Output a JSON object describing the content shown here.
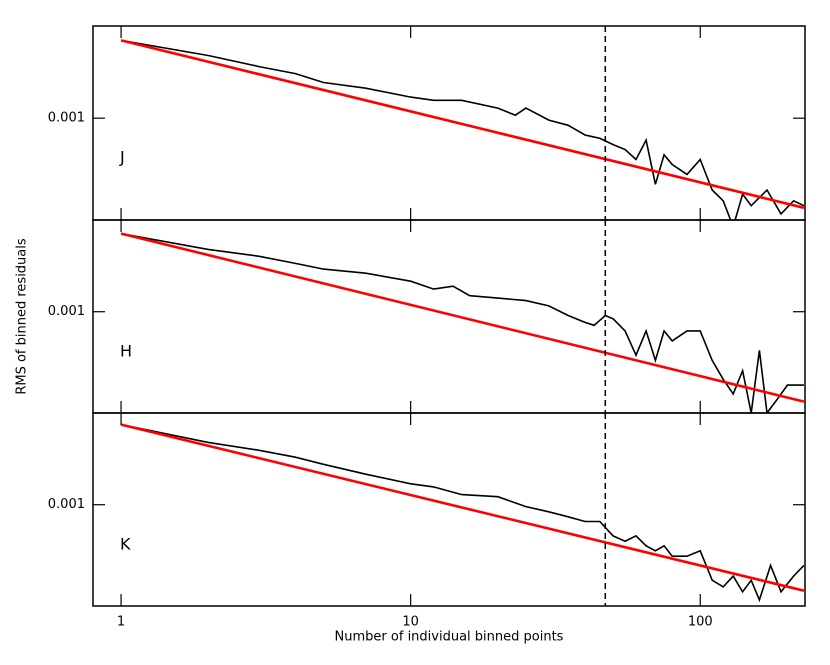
{
  "chart_data": [
    {
      "type": "line",
      "label": "J",
      "xscale": "log",
      "yscale": "log",
      "xlim": [
        0.8,
        230
      ],
      "ylim": [
        0.00019,
        0.0045
      ],
      "yticks": [
        0.001
      ],
      "vline": 47,
      "series": [
        {
          "color": "#000000",
          "x": [
            1,
            2,
            3,
            4,
            5,
            7,
            10,
            12,
            15,
            20,
            23,
            25,
            30,
            35,
            40,
            45,
            50,
            55,
            60,
            65,
            70,
            75,
            80,
            90,
            100,
            110,
            120,
            130,
            140,
            150,
            170,
            190,
            210,
            228
          ],
          "values": [
            0.00356,
            0.00278,
            0.00232,
            0.00207,
            0.00179,
            0.00163,
            0.00141,
            0.00134,
            0.00134,
            0.00118,
            0.00105,
            0.00118,
            0.00097,
            0.00089,
            0.00076,
            0.00072,
            0.00065,
            0.0006,
            0.00051,
            0.0007,
            0.00034,
            0.00055,
            0.00047,
            0.0004,
            0.00051,
            0.00031,
            0.00026,
            0.00017,
            0.00029,
            0.00024,
            0.00031,
            0.00021,
            0.00026,
            0.00024
          ]
        },
        {
          "color": "#ff0000",
          "x": [
            1,
            228
          ],
          "values": [
            0.00356,
            0.000232
          ]
        }
      ]
    },
    {
      "type": "line",
      "label": "H",
      "ylabel": "RMS of binned residuals",
      "xscale": "log",
      "yscale": "log",
      "xlim": [
        0.8,
        230
      ],
      "ylim": [
        0.00019,
        0.0045
      ],
      "yticks": [
        0.001
      ],
      "vline": 47,
      "series": [
        {
          "color": "#000000",
          "x": [
            1,
            2,
            3,
            4,
            5,
            7,
            10,
            12,
            14,
            16,
            20,
            25,
            30,
            35,
            40,
            43,
            47,
            50,
            55,
            60,
            65,
            70,
            75,
            80,
            90,
            100,
            110,
            120,
            130,
            140,
            150,
            160,
            170,
            185,
            200,
            228
          ],
          "values": [
            0.0036,
            0.00278,
            0.00248,
            0.00221,
            0.00201,
            0.00188,
            0.00165,
            0.00145,
            0.00152,
            0.0013,
            0.00125,
            0.0012,
            0.0011,
            0.00094,
            0.00084,
            0.0008,
            0.00094,
            0.00089,
            0.00073,
            0.00049,
            0.00073,
            0.00045,
            0.00073,
            0.00062,
            0.00073,
            0.00073,
            0.00045,
            0.00033,
            0.00026,
            0.00038,
            0.00019,
            0.00053,
            0.00019,
            0.00024,
            0.0003,
            0.0003
          ]
        },
        {
          "color": "#ff0000",
          "x": [
            1,
            228
          ],
          "values": [
            0.0036,
            0.000229
          ]
        }
      ]
    },
    {
      "type": "line",
      "label": "K",
      "xlabel": "Number of individual binned points",
      "xscale": "log",
      "yscale": "log",
      "xlim": [
        0.8,
        230
      ],
      "ylim": [
        0.00019,
        0.0045
      ],
      "xticks": [
        1,
        10,
        100
      ],
      "yticks": [
        0.001
      ],
      "vline": 47,
      "series": [
        {
          "color": "#000000",
          "x": [
            1,
            2,
            3,
            4,
            5,
            7,
            10,
            12,
            15,
            20,
            25,
            30,
            35,
            40,
            45,
            50,
            55,
            60,
            65,
            70,
            75,
            80,
            90,
            100,
            110,
            120,
            130,
            140,
            150,
            160,
            175,
            190,
            210,
            228
          ],
          "values": [
            0.00372,
            0.00278,
            0.00244,
            0.00218,
            0.00194,
            0.00165,
            0.00141,
            0.00134,
            0.00118,
            0.00114,
            0.00097,
            0.00089,
            0.00082,
            0.00076,
            0.00076,
            0.0006,
            0.00055,
            0.0006,
            0.00051,
            0.00047,
            0.00051,
            0.00043,
            0.00043,
            0.00047,
            0.00029,
            0.00026,
            0.00031,
            0.00024,
            0.00029,
            0.00021,
            0.00037,
            0.00024,
            0.00031,
            0.00037
          ]
        },
        {
          "color": "#ff0000",
          "x": [
            1,
            228
          ],
          "values": [
            0.00372,
            0.000244
          ]
        }
      ]
    }
  ]
}
